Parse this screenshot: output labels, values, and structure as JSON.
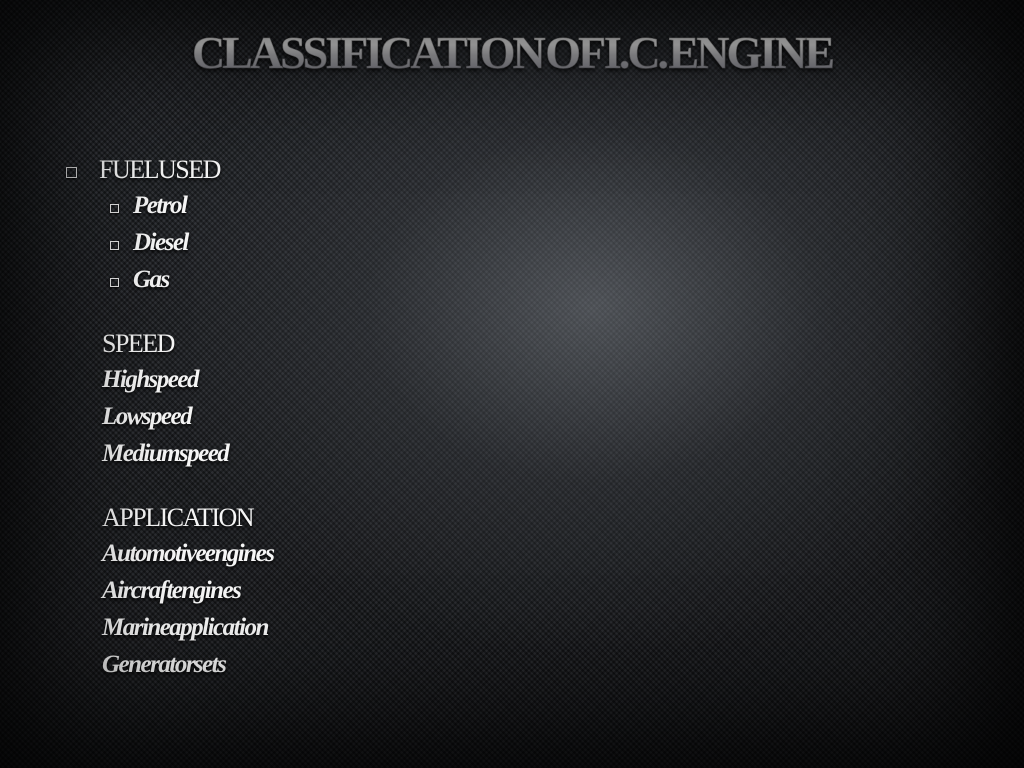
{
  "title": "CLASSIFICATION OF I.C. ENGINE",
  "title_fontsize": 46,
  "heading_fontsize": 26,
  "item_fontsize": 25,
  "line_height": 37,
  "colors": {
    "text": "#f6f6f6",
    "title_grad_top": "#ffffff",
    "title_grad_bot": "#6f6f76",
    "bg_dark": "#1a1b1e",
    "bg_mid": "#26282c",
    "bg_light": "#2e3136"
  },
  "sections": [
    {
      "heading": "FUEL USED",
      "heading_bulleted": true,
      "items_bulleted": true,
      "items": [
        "Petrol",
        "Diesel",
        "Gas"
      ]
    },
    {
      "heading": "SPEED",
      "heading_bulleted": false,
      "items_bulleted": false,
      "items": [
        "High speed",
        "Low speed",
        "Medium speed"
      ]
    },
    {
      "heading": "APPLICATION",
      "heading_bulleted": false,
      "items_bulleted": false,
      "items": [
        "Automotive engines",
        "Aircraft engines",
        "Marine application",
        "Generator sets"
      ]
    }
  ]
}
